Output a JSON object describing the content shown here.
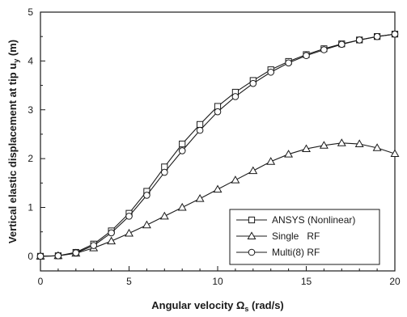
{
  "chart_data": {
    "type": "line",
    "xlabel": "Angular velocity Ω",
    "xlabel_sub": "s",
    "xlabel_unit": " (rad/s)",
    "ylabel": "Vertical elastic displacement at tip u",
    "ylabel_sub": "y",
    "ylabel_unit": " (m)",
    "xlim": [
      0,
      20
    ],
    "ylim": [
      -0.3,
      5
    ],
    "xticks": [
      0,
      5,
      10,
      15,
      20
    ],
    "yticks": [
      0,
      1,
      2,
      3,
      4,
      5
    ],
    "grid": false,
    "legend_position": "bottom-right",
    "series": [
      {
        "name": "ANSYS (Nonlinear)",
        "marker": "square",
        "x": [
          0,
          1,
          2,
          3,
          4,
          5,
          6,
          7,
          8,
          9,
          10,
          11,
          12,
          13,
          14,
          15,
          16,
          17,
          18,
          19,
          20
        ],
        "y": [
          0,
          0.01,
          0.08,
          0.25,
          0.52,
          0.88,
          1.33,
          1.83,
          2.3,
          2.7,
          3.07,
          3.36,
          3.6,
          3.82,
          3.99,
          4.13,
          4.25,
          4.35,
          4.43,
          4.5,
          4.55
        ]
      },
      {
        "name": "Single   RF",
        "marker": "triangle",
        "x": [
          0,
          1,
          2,
          3,
          4,
          5,
          6,
          7,
          8,
          9,
          10,
          11,
          12,
          13,
          14,
          15,
          16,
          17,
          18,
          19,
          20
        ],
        "y": [
          0,
          0.01,
          0.06,
          0.17,
          0.31,
          0.47,
          0.64,
          0.82,
          1.0,
          1.18,
          1.37,
          1.56,
          1.75,
          1.94,
          2.09,
          2.2,
          2.27,
          2.32,
          2.3,
          2.22,
          2.1
        ]
      },
      {
        "name": "Multi(8) RF",
        "marker": "circle",
        "x": [
          0,
          1,
          2,
          3,
          4,
          5,
          6,
          7,
          8,
          9,
          10,
          11,
          12,
          13,
          14,
          15,
          16,
          17,
          18,
          19,
          20
        ],
        "y": [
          0,
          0.01,
          0.07,
          0.22,
          0.48,
          0.82,
          1.25,
          1.72,
          2.16,
          2.58,
          2.96,
          3.27,
          3.54,
          3.77,
          3.96,
          4.11,
          4.23,
          4.34,
          4.43,
          4.5,
          4.55
        ]
      }
    ]
  }
}
